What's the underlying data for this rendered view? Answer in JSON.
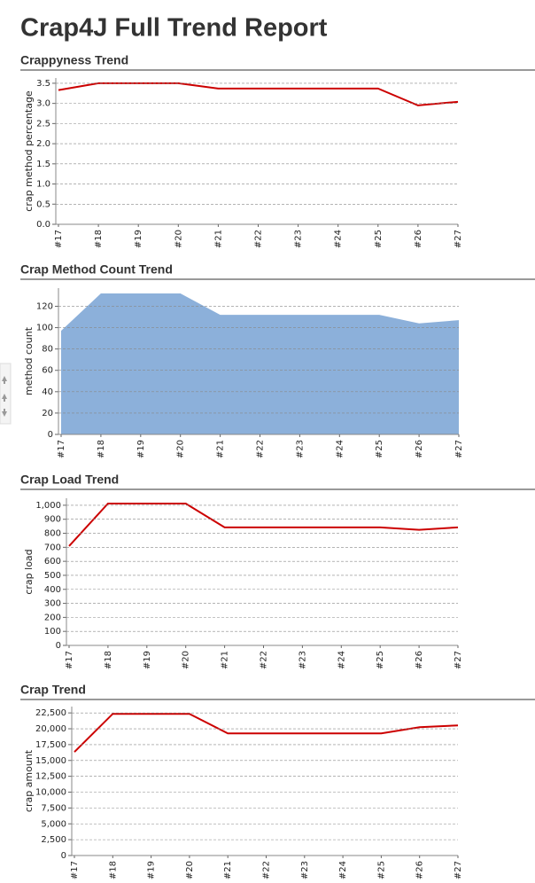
{
  "title": "Crap4J Full Trend Report",
  "chart_data": [
    {
      "type": "line",
      "title": "Crappyness Trend",
      "ylabel": "crap method percentage",
      "categories": [
        "#17",
        "#18",
        "#19",
        "#20",
        "#21",
        "#22",
        "#23",
        "#24",
        "#25",
        "#26",
        "#27"
      ],
      "values": [
        3.33,
        3.5,
        3.5,
        3.5,
        3.37,
        3.37,
        3.37,
        3.37,
        3.37,
        2.95,
        3.04
      ],
      "color": "#cc0000",
      "ylim": [
        0,
        3.63
      ],
      "yticks": [
        {
          "value": 0,
          "label": "0.0"
        },
        0.5,
        {
          "value": 1,
          "label": "1.0"
        },
        1.5,
        {
          "value": 2,
          "label": "2.0"
        },
        2.5,
        {
          "value": 3,
          "label": "3.0"
        },
        3.5
      ],
      "grid": true
    },
    {
      "type": "area",
      "title": "Crap Method Count Trend",
      "ylabel": "method count",
      "categories": [
        "#17",
        "#18",
        "#19",
        "#20",
        "#21",
        "#22",
        "#23",
        "#24",
        "#25",
        "#26",
        "#27"
      ],
      "values": [
        97,
        132,
        132,
        132,
        112,
        112,
        112,
        112,
        112,
        104,
        107
      ],
      "color": "#8cb0da",
      "ylim": [
        0,
        137
      ],
      "yticks": [
        0,
        20,
        40,
        60,
        80,
        100,
        120
      ],
      "grid": true
    },
    {
      "type": "line",
      "title": "Crap Load Trend",
      "ylabel": "crap load",
      "categories": [
        "#17",
        "#18",
        "#19",
        "#20",
        "#21",
        "#22",
        "#23",
        "#24",
        "#25",
        "#26",
        "#27"
      ],
      "values": [
        709,
        1012,
        1012,
        1012,
        842,
        842,
        842,
        842,
        842,
        825,
        842
      ],
      "color": "#cc0000",
      "ylim": [
        0,
        1050
      ],
      "yticks": [
        0,
        100,
        200,
        300,
        400,
        500,
        600,
        700,
        800,
        900,
        {
          "value": 1000,
          "label": "1,000"
        }
      ],
      "grid": true
    },
    {
      "type": "line",
      "title": "Crap Trend",
      "ylabel": "crap amount",
      "categories": [
        "#17",
        "#18",
        "#19",
        "#20",
        "#21",
        "#22",
        "#23",
        "#24",
        "#25",
        "#26",
        "#27"
      ],
      "values": [
        16340,
        22350,
        22350,
        22350,
        19270,
        19270,
        19270,
        19270,
        19270,
        20250,
        20530
      ],
      "color": "#cc0000",
      "ylim": [
        0,
        23500
      ],
      "yticks": [
        0,
        {
          "value": 2500,
          "label": "2,500"
        },
        {
          "value": 5000,
          "label": "5,000"
        },
        {
          "value": 7500,
          "label": "7,500"
        },
        {
          "value": 10000,
          "label": "10,000"
        },
        {
          "value": 12500,
          "label": "12,500"
        },
        {
          "value": 15000,
          "label": "15,000"
        },
        {
          "value": 17500,
          "label": "17,500"
        },
        {
          "value": 20000,
          "label": "20,000"
        },
        {
          "value": 22500,
          "label": "22,500"
        }
      ],
      "grid": true
    }
  ]
}
